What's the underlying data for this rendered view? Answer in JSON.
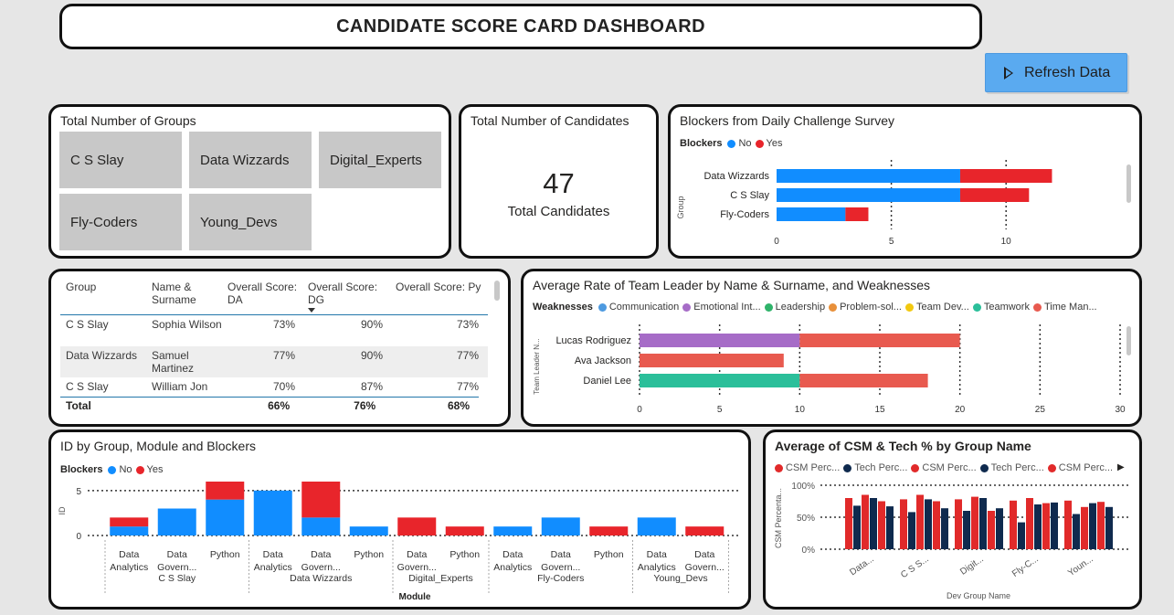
{
  "header": {
    "title": "CANDIDATE SCORE CARD DASHBOARD"
  },
  "refresh_button": {
    "label": "Refresh Data",
    "icon": "play-icon"
  },
  "colors": {
    "no": "#118dff",
    "yes": "#e8252b",
    "purple": "#a66cc7",
    "coral": "#e85a4f",
    "teal": "#2bbf9a",
    "navy": "#12239e",
    "csm": "#e12a2a",
    "tech": "#0f2a4e"
  },
  "groups_card": {
    "title": "Total Number of Groups",
    "groups": [
      "C S Slay",
      "Data Wizzards",
      "Digital_Experts",
      "Fly-Coders",
      "Young_Devs"
    ]
  },
  "candidates_card": {
    "title": "Total Number of Candidates",
    "value": "47",
    "caption": "Total Candidates"
  },
  "blockers_chart": {
    "title": "Blockers from Daily Challenge Survey",
    "legend_title": "Blockers",
    "legend": [
      "No",
      "Yes"
    ],
    "axis_label": "Group",
    "chart_data": {
      "type": "bar",
      "orientation": "horizontal",
      "stacked": true,
      "categories": [
        "Data Wizzards",
        "C S Slay",
        "Fly-Coders"
      ],
      "series": [
        {
          "name": "No",
          "values": [
            8,
            8,
            3
          ]
        },
        {
          "name": "Yes",
          "values": [
            4,
            3,
            1
          ]
        }
      ],
      "ylabel": "Group",
      "xticks": [
        "0",
        "5",
        "10"
      ],
      "xlim": [
        0,
        12.5
      ]
    }
  },
  "score_table": {
    "columns": [
      "Group",
      "Name & Surname",
      "Overall Score: DA",
      "Overall Score: DG",
      "Overall Score: Py"
    ],
    "rows": [
      [
        "C S Slay",
        "Sophia Wilson",
        "73%",
        "90%",
        "73%"
      ],
      [
        "Data Wizzards",
        "Samuel Martinez",
        "77%",
        "90%",
        "77%"
      ],
      [
        "C S Slay",
        "William Jon",
        "70%",
        "87%",
        "77%"
      ]
    ],
    "total": [
      "Total",
      "",
      "66%",
      "76%",
      "68%"
    ]
  },
  "leader_chart": {
    "title": "Average Rate of Team Leader by Name & Surname, and Weaknesses",
    "legend_title": "Weaknesses",
    "legend": [
      "Communication",
      "Emotional Int...",
      "Leadership",
      "Problem-sol...",
      "Team Dev...",
      "Teamwork",
      "Time Man..."
    ],
    "legend_colors": [
      "#4d9ae0",
      "#a66cc7",
      "#2fb36a",
      "#e8903a",
      "#f2c80f",
      "#2bbf9a",
      "#e85a4f"
    ],
    "axis_label": "Team Leader N...",
    "chart_data": {
      "type": "bar",
      "orientation": "horizontal",
      "stacked": true,
      "categories": [
        "Lucas Rodriguez",
        "Ava Jackson",
        "Daniel Lee"
      ],
      "segments": [
        [
          {
            "name": "Emotional Int...",
            "value": 10
          },
          {
            "name": "Time Man...",
            "value": 10
          }
        ],
        [
          {
            "name": "Time Man...",
            "value": 9
          }
        ],
        [
          {
            "name": "Teamwork",
            "value": 10
          },
          {
            "name": "Time Man...",
            "value": 8
          }
        ]
      ],
      "xticks": [
        "0",
        "5",
        "10",
        "15",
        "20",
        "25",
        "30"
      ],
      "xlim": [
        0,
        30
      ]
    }
  },
  "module_chart": {
    "title": "ID by Group, Module and Blockers",
    "legend_title": "Blockers",
    "legend": [
      "No",
      "Yes"
    ],
    "ylabel": "ID",
    "xlabel": "Module",
    "chart_data": {
      "type": "bar",
      "stacked": true,
      "yticks": [
        "0",
        "5"
      ],
      "ylim": [
        0,
        6
      ],
      "groups": [
        "C S Slay",
        "Data Wizzards",
        "Digital_Experts",
        "Fly-Coders",
        "Young_Devs"
      ],
      "bars": [
        {
          "group": "C S Slay",
          "label": [
            "Data",
            "Analytics"
          ],
          "no": 1,
          "yes": 1
        },
        {
          "group": "C S Slay",
          "label": [
            "Data",
            "Govern..."
          ],
          "no": 3,
          "yes": 0
        },
        {
          "group": "C S Slay",
          "label": [
            "Python"
          ],
          "no": 4,
          "yes": 2
        },
        {
          "group": "Data Wizzards",
          "label": [
            "Data",
            "Analytics"
          ],
          "no": 5,
          "yes": 0
        },
        {
          "group": "Data Wizzards",
          "label": [
            "Data",
            "Govern..."
          ],
          "no": 2,
          "yes": 4
        },
        {
          "group": "Data Wizzards",
          "label": [
            "Python"
          ],
          "no": 1,
          "yes": 0
        },
        {
          "group": "Digital_Experts",
          "label": [
            "Data",
            "Govern..."
          ],
          "no": 0,
          "yes": 2
        },
        {
          "group": "Digital_Experts",
          "label": [
            "Python"
          ],
          "no": 0,
          "yes": 1
        },
        {
          "group": "Fly-Coders",
          "label": [
            "Data",
            "Analytics"
          ],
          "no": 1,
          "yes": 0
        },
        {
          "group": "Fly-Coders",
          "label": [
            "Data",
            "Govern..."
          ],
          "no": 2,
          "yes": 0
        },
        {
          "group": "Fly-Coders",
          "label": [
            "Python"
          ],
          "no": 0,
          "yes": 1
        },
        {
          "group": "Young_Devs",
          "label": [
            "Data",
            "Analytics"
          ],
          "no": 2,
          "yes": 0
        },
        {
          "group": "Young_Devs",
          "label": [
            "Data",
            "Govern..."
          ],
          "no": 0,
          "yes": 1
        }
      ]
    }
  },
  "csm_chart": {
    "title": "Average of CSM & Tech % by Group Name",
    "legend": [
      "CSM Perc...",
      "Tech Perc...",
      "CSM Perc...",
      "Tech Perc...",
      "CSM Perc..."
    ],
    "legend_colors": [
      "#e12a2a",
      "#0f2a4e",
      "#e12a2a",
      "#0f2a4e",
      "#e12a2a"
    ],
    "ylabel": "CSM Percenta...",
    "xlabel": "Dev Group Name",
    "chart_data": {
      "type": "bar",
      "categories": [
        "Data...",
        "C S S...",
        "Digit...",
        "Fly-C...",
        "Youn..."
      ],
      "yticks": [
        "0%",
        "50%",
        "100%"
      ],
      "ylim": [
        0,
        100
      ],
      "series": [
        {
          "name": "CSM Perc...",
          "values": [
            80,
            78,
            78,
            76,
            76
          ]
        },
        {
          "name": "Tech Perc...",
          "values": [
            68,
            58,
            60,
            42,
            55
          ]
        },
        {
          "name": "CSM Perc...",
          "values": [
            85,
            85,
            82,
            80,
            66
          ]
        },
        {
          "name": "Tech Perc...",
          "values": [
            80,
            78,
            80,
            70,
            72
          ]
        },
        {
          "name": "CSM Perc...",
          "values": [
            75,
            75,
            60,
            72,
            74
          ]
        },
        {
          "name": "Tech Perc...",
          "values": [
            67,
            64,
            64,
            73,
            66
          ]
        }
      ]
    }
  }
}
